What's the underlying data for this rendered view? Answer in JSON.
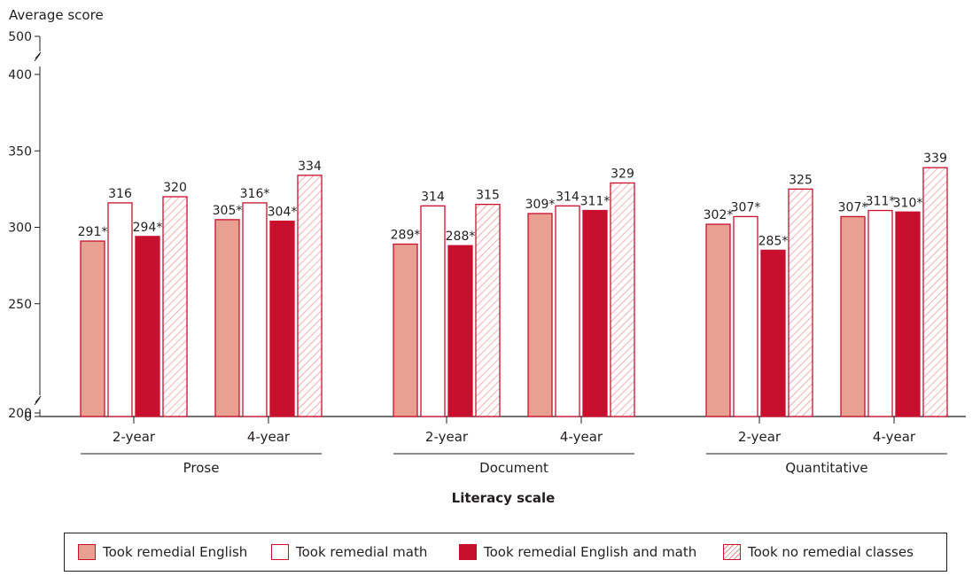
{
  "chart_data": {
    "type": "bar",
    "ylabel": "Average score",
    "xlabel": "Literacy scale",
    "ylim": [
      0,
      500
    ],
    "y_ticks": [
      "500",
      "400",
      "350",
      "300",
      "250",
      "200",
      "0"
    ],
    "axis_break": "between 0 and 200, and between 400 and 500",
    "grid": false,
    "legend_position": "bottom",
    "groups": [
      "Prose",
      "Document",
      "Quantitative"
    ],
    "subgroups": [
      "2-year",
      "4-year"
    ],
    "series": [
      {
        "name": "Took remedial English",
        "color": "#e8a090",
        "fill": "solid",
        "values": [
          291,
          305,
          289,
          309,
          302,
          307
        ],
        "labels": [
          "291*",
          "305*",
          "289*",
          "309*",
          "302*",
          "307*"
        ]
      },
      {
        "name": "Took remedial math",
        "color": "#ffffff",
        "fill": "outline",
        "values": [
          316,
          316,
          314,
          314,
          307,
          311
        ],
        "labels": [
          "316",
          "316*",
          "314",
          "314",
          "307*",
          "311*"
        ]
      },
      {
        "name": "Took remedial English and math",
        "color": "#c8102e",
        "fill": "solid",
        "values": [
          294,
          304,
          288,
          311,
          285,
          310
        ],
        "labels": [
          "294*",
          "304*",
          "288*",
          "311*",
          "285*",
          "310*"
        ]
      },
      {
        "name": "Took no remedial classes",
        "color": "#e88a8a",
        "fill": "hatched",
        "values": [
          320,
          334,
          315,
          329,
          325,
          339
        ],
        "labels": [
          "320",
          "334",
          "315",
          "329",
          "325",
          "339"
        ]
      }
    ]
  },
  "legend": {
    "items": [
      {
        "label": "Took remedial English"
      },
      {
        "label": "Took remedial math"
      },
      {
        "label": "Took remedial English and math"
      },
      {
        "label": "Took no remedial classes"
      }
    ]
  }
}
